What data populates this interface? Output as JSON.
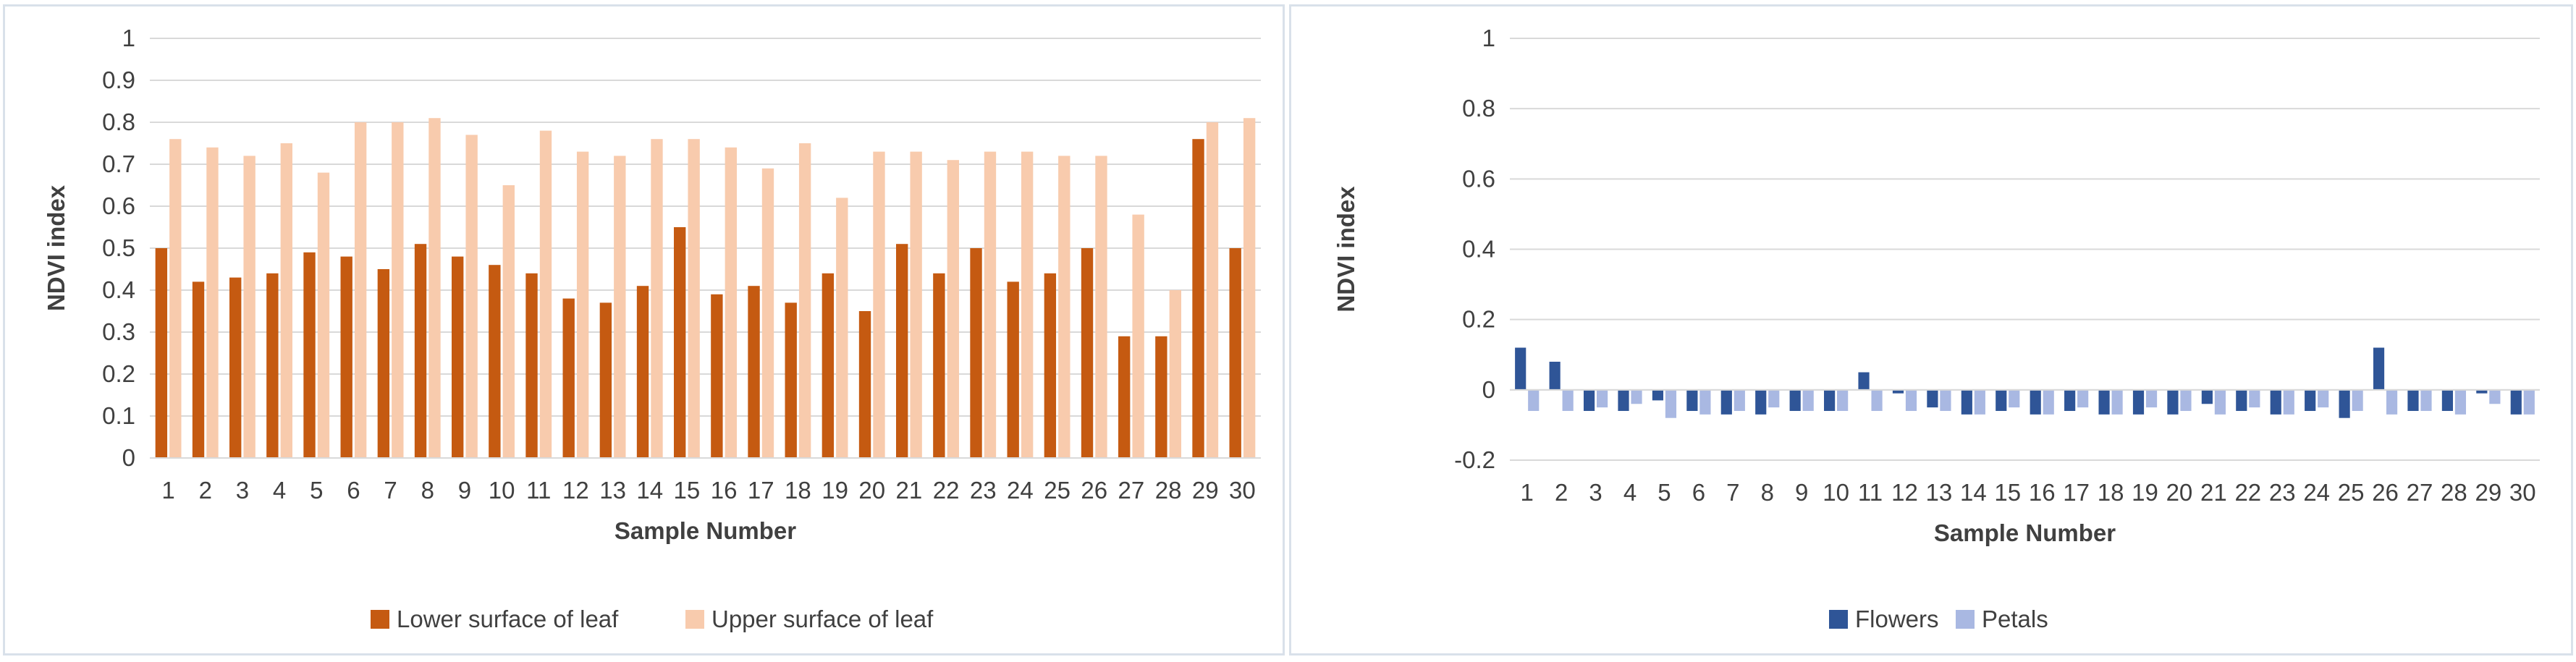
{
  "colors": {
    "lower_leaf": "#c55a11",
    "upper_leaf": "#f8cbad",
    "flowers": "#2f5597",
    "petals": "#a9b8e2",
    "grid": "#d9d9d9",
    "text": "#404040"
  },
  "chart_data": [
    {
      "type": "bar",
      "title": "",
      "xlabel": "Sample Number",
      "ylabel": "NDVI index",
      "ylim": [
        0,
        1
      ],
      "yticks": [
        "0",
        "0.1",
        "0.2",
        "0.3",
        "0.4",
        "0.5",
        "0.6",
        "0.7",
        "0.8",
        "0.9",
        "1"
      ],
      "grid": true,
      "legend_position": "bottom",
      "categories": [
        "1",
        "2",
        "3",
        "4",
        "5",
        "6",
        "7",
        "8",
        "9",
        "10",
        "11",
        "12",
        "13",
        "14",
        "15",
        "16",
        "17",
        "18",
        "19",
        "20",
        "21",
        "22",
        "23",
        "24",
        "25",
        "26",
        "27",
        "28",
        "29",
        "30"
      ],
      "series": [
        {
          "name": "Lower surface of leaf",
          "values": [
            0.5,
            0.42,
            0.43,
            0.44,
            0.49,
            0.48,
            0.45,
            0.51,
            0.48,
            0.46,
            0.44,
            0.38,
            0.37,
            0.41,
            0.55,
            0.39,
            0.41,
            0.37,
            0.44,
            0.35,
            0.51,
            0.44,
            0.5,
            0.42,
            0.44,
            0.5,
            0.29,
            0.29,
            0.76,
            0.5
          ]
        },
        {
          "name": "Upper surface of leaf",
          "values": [
            0.76,
            0.74,
            0.72,
            0.75,
            0.68,
            0.8,
            0.8,
            0.81,
            0.77,
            0.65,
            0.78,
            0.73,
            0.72,
            0.76,
            0.76,
            0.74,
            0.69,
            0.75,
            0.62,
            0.73,
            0.73,
            0.71,
            0.73,
            0.73,
            0.72,
            0.72,
            0.58,
            0.4,
            0.8,
            0.81
          ]
        }
      ]
    },
    {
      "type": "bar",
      "title": "",
      "xlabel": "Sample Number",
      "ylabel": "NDVI index",
      "ylim": [
        -0.2,
        1
      ],
      "yticks": [
        "-0.2",
        "0",
        "0.2",
        "0.4",
        "0.6",
        "0.8",
        "1"
      ],
      "grid": true,
      "legend_position": "bottom",
      "categories": [
        "1",
        "2",
        "3",
        "4",
        "5",
        "6",
        "7",
        "8",
        "9",
        "10",
        "11",
        "12",
        "13",
        "14",
        "15",
        "16",
        "17",
        "18",
        "19",
        "20",
        "21",
        "22",
        "23",
        "24",
        "25",
        "26",
        "27",
        "28",
        "29",
        "30"
      ],
      "series": [
        {
          "name": "Flowers",
          "values": [
            0.12,
            0.08,
            -0.06,
            -0.06,
            -0.03,
            -0.06,
            -0.07,
            -0.07,
            -0.06,
            -0.06,
            0.05,
            -0.01,
            -0.05,
            -0.07,
            -0.06,
            -0.07,
            -0.06,
            -0.07,
            -0.07,
            -0.07,
            -0.04,
            -0.06,
            -0.07,
            -0.06,
            -0.08,
            0.12,
            -0.06,
            -0.06,
            -0.01,
            -0.07
          ]
        },
        {
          "name": "Petals",
          "values": [
            -0.06,
            -0.06,
            -0.05,
            -0.04,
            -0.08,
            -0.07,
            -0.06,
            -0.05,
            -0.06,
            -0.06,
            -0.06,
            -0.06,
            -0.06,
            -0.07,
            -0.05,
            -0.07,
            -0.05,
            -0.07,
            -0.05,
            -0.06,
            -0.07,
            -0.05,
            -0.07,
            -0.05,
            -0.06,
            -0.07,
            -0.06,
            -0.07,
            -0.04,
            -0.07
          ]
        }
      ]
    }
  ]
}
